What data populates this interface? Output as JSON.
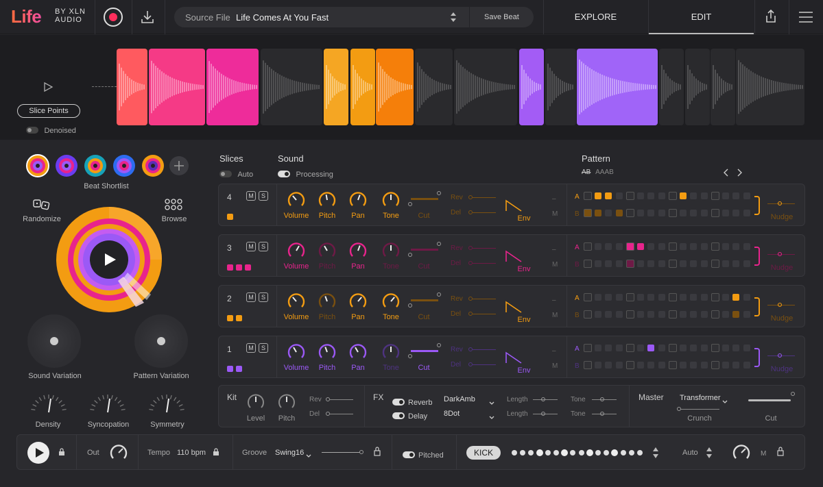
{
  "app": {
    "logo_life": "Life",
    "logo_by": "BY XLN",
    "logo_audio": "AUDIO"
  },
  "topbar": {
    "source_label": "Source File",
    "source_value": "Life Comes At You Fast",
    "save_beat": "Save Beat",
    "explore": "EXPLORE",
    "edit": "EDIT"
  },
  "waveform": {
    "slice_points": "Slice Points",
    "denoised": "Denoised"
  },
  "left": {
    "beat_shortlist": "Beat Shortlist",
    "randomize": "Randomize",
    "browse": "Browse",
    "sound_variation": "Sound Variation",
    "pattern_variation": "Pattern Variation",
    "density": "Density",
    "syncopation": "Syncopation",
    "symmetry": "Symmetry"
  },
  "headers": {
    "slices": "Slices",
    "auto": "Auto",
    "sound": "Sound",
    "processing": "Processing",
    "pattern": "Pattern",
    "pattern_ab": "AB",
    "pattern_aaab": "AAAB"
  },
  "track_labels": {
    "m": "M",
    "s": "S",
    "volume": "Volume",
    "pitch": "Pitch",
    "pan": "Pan",
    "tone": "Tone",
    "cut": "Cut",
    "rev": "Rev",
    "del": "Del",
    "env": "Env",
    "dash": "–",
    "mute": "M",
    "a": "A",
    "b": "B",
    "nudge": "Nudge"
  },
  "tracks": [
    {
      "num": "4",
      "color": "#f39c12",
      "dim": "#7a5010",
      "squares": 1
    },
    {
      "num": "3",
      "color": "#e8248c",
      "dim": "#6e1a46",
      "squares": 3
    },
    {
      "num": "2",
      "color": "#f39c12",
      "dim": "#7a5010",
      "squares": 2
    },
    {
      "num": "1",
      "color": "#9b59f6",
      "dim": "#4e3380",
      "squares": 2
    }
  ],
  "kit": {
    "title": "Kit",
    "level": "Level",
    "pitch": "Pitch",
    "rev": "Rev",
    "del": "Del"
  },
  "fx": {
    "title": "FX",
    "reverb": "Reverb",
    "reverb_type": "DarkAmb",
    "delay": "Delay",
    "delay_type": "8Dot",
    "length": "Length",
    "tone": "Tone"
  },
  "master": {
    "title": "Master",
    "mode": "Transformer",
    "crunch": "Crunch",
    "cut": "Cut"
  },
  "bottom": {
    "out": "Out",
    "tempo_label": "Tempo",
    "tempo_value": "110 bpm",
    "groove_label": "Groove",
    "groove_value": "Swing16",
    "pitched": "Pitched",
    "kick": "KICK",
    "auto": "Auto",
    "m": "M"
  },
  "colors": {
    "orange": "#f39c12",
    "pink": "#e8248c",
    "purple": "#9b59f6",
    "red": "#ff2e5c"
  }
}
